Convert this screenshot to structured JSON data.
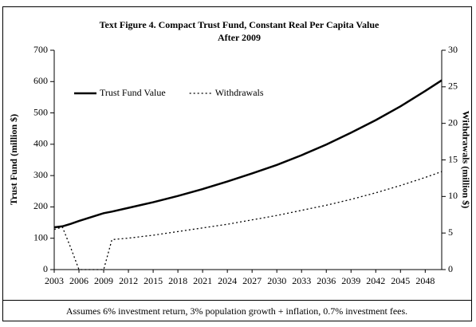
{
  "chart_data": {
    "type": "line",
    "title": [
      "Text Figure 4. Compact Trust Fund, Constant Real Per Capita Value",
      "After 2009"
    ],
    "y_label": "Trust Fund (million $)",
    "y2_label": "Withdrawals (million $)",
    "note": "Assumes 6% investment return, 3% population growth + inflation, 0.7% investment fees.",
    "x": [
      2003,
      2004,
      2005,
      2006,
      2009,
      2010,
      2012,
      2015,
      2018,
      2021,
      2024,
      2027,
      2030,
      2033,
      2036,
      2039,
      2042,
      2045,
      2048,
      2050
    ],
    "series": [
      {
        "name": "Trust Fund Value",
        "color": "#000000",
        "style": "solid",
        "values": [
          135,
          138,
          146,
          155,
          180,
          185,
          197,
          215,
          235,
          257,
          281,
          307,
          334,
          365,
          399,
          437,
          477,
          521,
          570,
          604
        ]
      },
      {
        "name": "Withdrawals",
        "color": "#000000",
        "style": "dotted",
        "axis": "y2",
        "values": [
          5.5,
          5.8,
          3,
          0,
          0,
          4.1,
          4.3,
          4.7,
          5.2,
          5.7,
          6.2,
          6.8,
          7.4,
          8.1,
          8.8,
          9.6,
          10.5,
          11.5,
          12.6,
          13.4
        ]
      }
    ],
    "xlim": [
      2003,
      2050
    ],
    "xticks": [
      2003,
      2006,
      2009,
      2012,
      2015,
      2018,
      2021,
      2024,
      2027,
      2030,
      2033,
      2036,
      2039,
      2042,
      2045,
      2048
    ],
    "ylim": [
      0,
      700
    ],
    "yticks": [
      0,
      100,
      200,
      300,
      400,
      500,
      600,
      700
    ],
    "y2lim": [
      0,
      30
    ],
    "y2ticks": [
      0,
      5,
      10,
      15,
      20,
      25,
      30
    ],
    "legend": "upper left",
    "grid": false
  }
}
